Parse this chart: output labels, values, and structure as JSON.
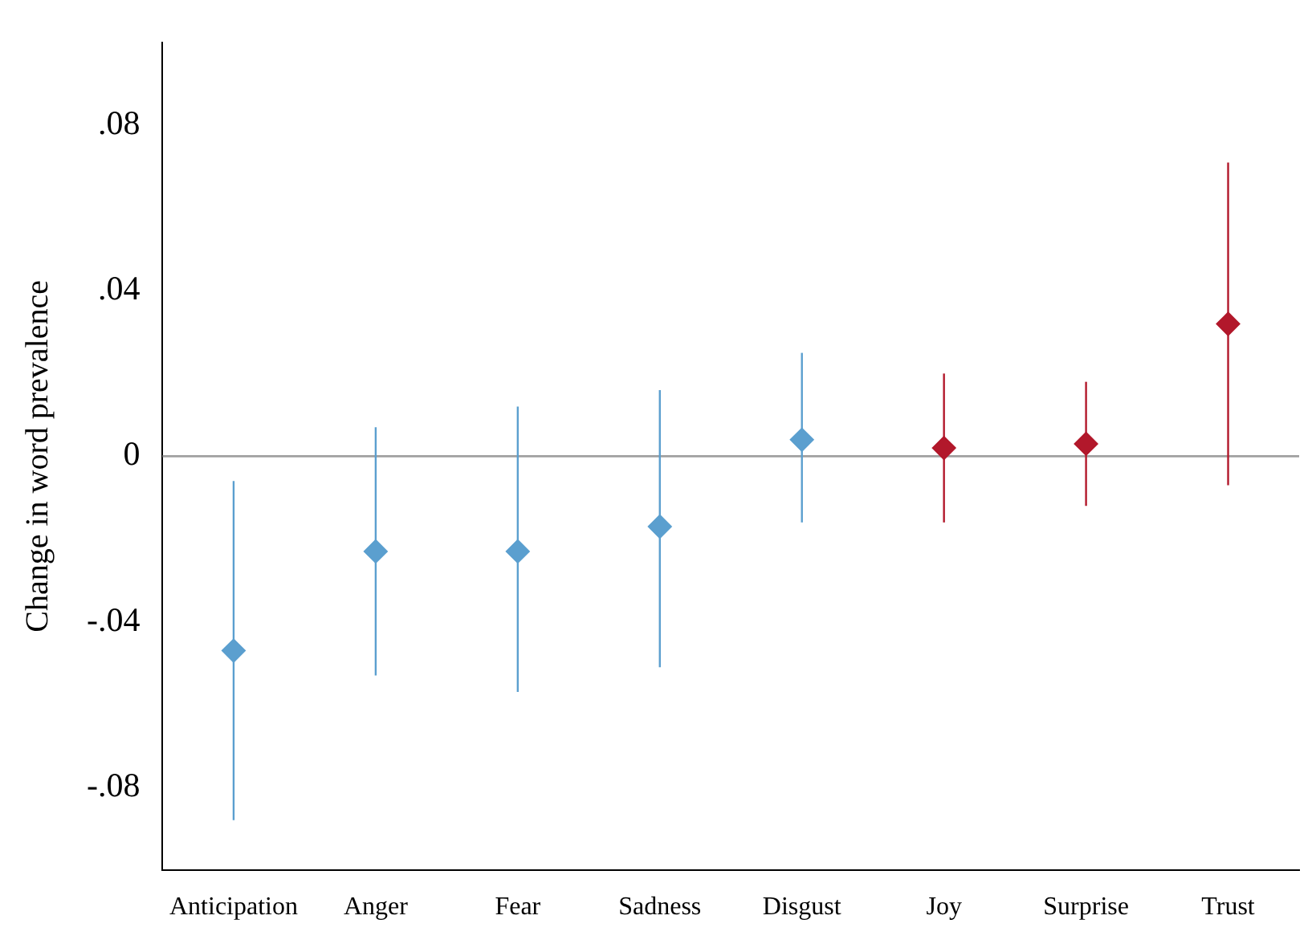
{
  "chart_data": {
    "type": "scatter",
    "ylabel": "Change in word prevalence",
    "categories": [
      "Anticipation",
      "Anger",
      "Fear",
      "Sadness",
      "Disgust",
      "Joy",
      "Surprise",
      "Trust"
    ],
    "values": [
      -0.047,
      -0.023,
      -0.023,
      -0.017,
      0.004,
      0.002,
      0.003,
      0.032
    ],
    "errors": [
      [
        -0.088,
        -0.006
      ],
      [
        -0.053,
        0.007
      ],
      [
        -0.057,
        0.012
      ],
      [
        -0.051,
        0.016
      ],
      [
        -0.016,
        0.025
      ],
      [
        -0.016,
        0.02
      ],
      [
        -0.012,
        0.018
      ],
      [
        -0.007,
        0.071
      ]
    ],
    "colors": [
      "#5b9fcf",
      "#5b9fcf",
      "#5b9fcf",
      "#5b9fcf",
      "#5b9fcf",
      "#b2182b",
      "#b2182b",
      "#b2182b"
    ],
    "ylim": [
      -0.1,
      0.1
    ],
    "yticks": [
      {
        "value": -0.08,
        "label": "-.08"
      },
      {
        "value": -0.04,
        "label": "-.04"
      },
      {
        "value": 0,
        "label": "0"
      },
      {
        "value": 0.04,
        "label": ".04"
      },
      {
        "value": 0.08,
        "label": ".08"
      }
    ],
    "ref_lines": [
      {
        "axis": "y",
        "value": 0,
        "color": "#a0a0a0"
      }
    ],
    "marker": "diamond",
    "grid": false,
    "legend": false
  }
}
